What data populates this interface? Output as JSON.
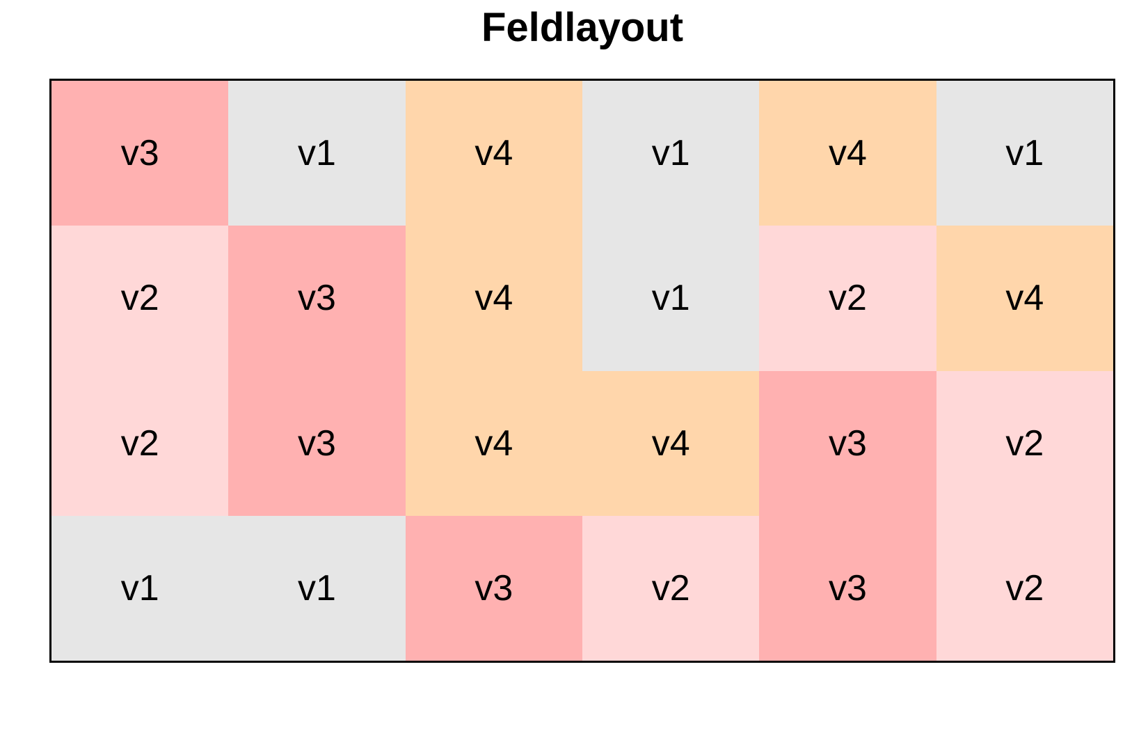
{
  "title": "Feldlayout",
  "chart_data": {
    "type": "heatmap",
    "title": "Feldlayout",
    "rows": 4,
    "cols": 6,
    "cells": [
      [
        "v3",
        "v1",
        "v4",
        "v1",
        "v4",
        "v1"
      ],
      [
        "v2",
        "v3",
        "v4",
        "v1",
        "v2",
        "v4"
      ],
      [
        "v2",
        "v3",
        "v4",
        "v4",
        "v3",
        "v2"
      ],
      [
        "v1",
        "v1",
        "v3",
        "v2",
        "v3",
        "v2"
      ]
    ],
    "categories": [
      "v1",
      "v2",
      "v3",
      "v4"
    ],
    "colors": {
      "v1": "#E6E6E6",
      "v2": "#FFD8D8",
      "v3": "#FFB1B1",
      "v4": "#FFD6AB"
    },
    "border_color": "#000000",
    "text_color": "#000000",
    "background_color": "#FFFFFF",
    "grid": "off",
    "legend_position": "none"
  }
}
